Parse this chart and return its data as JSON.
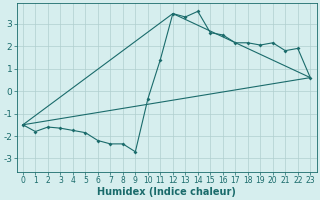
{
  "xlabel": "Humidex (Indice chaleur)",
  "ylabel": "",
  "background_color": "#d6eeee",
  "grid_color": "#b0cfcf",
  "line_color": "#1a6b6b",
  "xlim": [
    -0.5,
    23.5
  ],
  "ylim": [
    -3.6,
    3.9
  ],
  "yticks": [
    -3,
    -2,
    -1,
    0,
    1,
    2,
    3
  ],
  "xticks": [
    0,
    1,
    2,
    3,
    4,
    5,
    6,
    7,
    8,
    9,
    10,
    11,
    12,
    13,
    14,
    15,
    16,
    17,
    18,
    19,
    20,
    21,
    22,
    23
  ],
  "curve1_x": [
    0,
    1,
    2,
    3,
    4,
    5,
    6,
    7,
    8,
    9,
    10,
    11,
    12,
    13,
    14,
    15,
    16,
    17,
    18,
    19,
    20,
    21,
    22,
    23
  ],
  "curve1_y": [
    -1.5,
    -1.8,
    -1.6,
    -1.65,
    -1.75,
    -1.85,
    -2.2,
    -2.35,
    -2.35,
    -2.7,
    -0.35,
    1.4,
    3.45,
    3.3,
    3.55,
    2.6,
    2.5,
    2.15,
    2.15,
    2.05,
    2.15,
    1.8,
    1.9,
    0.6
  ],
  "curve2_x": [
    0,
    23
  ],
  "curve2_y": [
    -1.5,
    0.6
  ],
  "curve3_x": [
    0,
    12,
    23
  ],
  "curve3_y": [
    -1.5,
    3.45,
    0.6
  ]
}
